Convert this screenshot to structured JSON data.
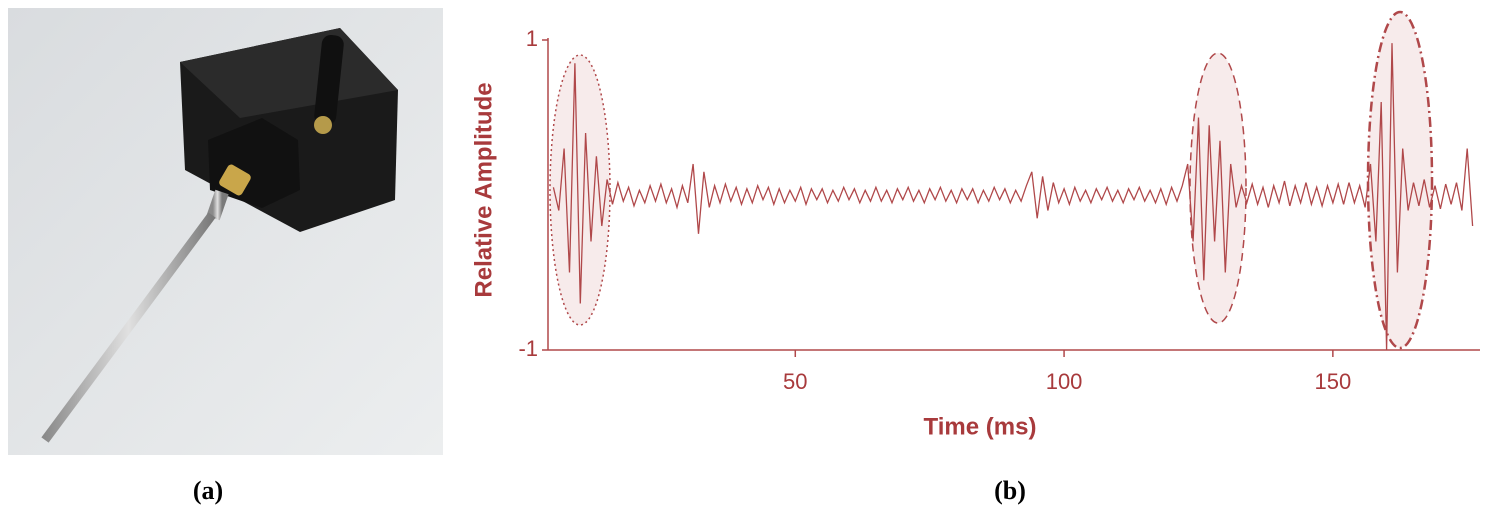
{
  "panels": {
    "a": "(a)",
    "b": "(b)"
  },
  "chart_data": {
    "type": "line",
    "ylabel": "Relative Amplitude",
    "xlabel": "Time (ms)",
    "xlim": [
      4,
      177
    ],
    "xticks": [
      50,
      100,
      150
    ],
    "ylim": [
      -1,
      1
    ],
    "yticks": [
      -1,
      1
    ],
    "color": "#b0484a",
    "x": [
      5,
      6,
      7,
      8,
      9,
      10,
      11,
      12,
      13,
      14,
      15,
      16,
      17,
      18,
      19,
      20,
      21,
      22,
      23,
      24,
      25,
      26,
      27,
      28,
      29,
      30,
      31,
      32,
      33,
      34,
      35,
      36,
      37,
      38,
      39,
      40,
      41,
      42,
      43,
      44,
      45,
      46,
      47,
      48,
      49,
      50,
      51,
      52,
      53,
      54,
      55,
      56,
      57,
      58,
      59,
      60,
      61,
      62,
      63,
      64,
      65,
      66,
      67,
      68,
      69,
      70,
      71,
      72,
      73,
      74,
      75,
      76,
      77,
      78,
      79,
      80,
      81,
      82,
      83,
      84,
      85,
      86,
      87,
      88,
      89,
      90,
      91,
      92,
      93,
      94,
      95,
      96,
      97,
      98,
      99,
      100,
      101,
      102,
      103,
      104,
      105,
      106,
      107,
      108,
      109,
      110,
      111,
      112,
      113,
      114,
      115,
      116,
      117,
      118,
      119,
      120,
      121,
      122,
      123,
      124,
      125,
      126,
      127,
      128,
      129,
      130,
      131,
      132,
      133,
      134,
      135,
      136,
      137,
      138,
      139,
      140,
      141,
      142,
      143,
      144,
      145,
      146,
      147,
      148,
      149,
      150,
      151,
      152,
      153,
      154,
      155,
      156,
      157,
      158,
      159,
      160,
      161,
      162,
      163,
      164,
      165,
      166,
      167,
      168,
      169,
      170,
      171,
      172,
      173,
      174,
      175,
      176
    ],
    "values": [
      0.05,
      -0.1,
      0.3,
      -0.5,
      0.85,
      -0.7,
      0.4,
      -0.3,
      0.25,
      -0.2,
      0.1,
      -0.06,
      0.08,
      -0.04,
      0.05,
      -0.07,
      0.03,
      -0.05,
      0.06,
      -0.04,
      0.07,
      -0.05,
      0.04,
      -0.08,
      0.06,
      -0.05,
      0.2,
      -0.25,
      0.15,
      -0.08,
      0.06,
      -0.05,
      0.07,
      -0.04,
      0.05,
      -0.06,
      0.04,
      -0.05,
      0.06,
      -0.03,
      0.05,
      -0.06,
      0.04,
      -0.05,
      0.03,
      -0.04,
      0.05,
      -0.06,
      0.04,
      -0.03,
      0.04,
      -0.05,
      0.03,
      -0.04,
      0.05,
      -0.03,
      0.04,
      -0.05,
      0.03,
      -0.04,
      0.05,
      -0.04,
      0.03,
      -0.05,
      0.04,
      -0.03,
      0.05,
      -0.04,
      0.03,
      -0.05,
      0.04,
      -0.03,
      0.05,
      -0.04,
      0.03,
      -0.05,
      0.04,
      -0.03,
      0.04,
      -0.05,
      0.03,
      -0.04,
      0.05,
      -0.03,
      0.04,
      -0.05,
      0.03,
      -0.04,
      0.06,
      0.15,
      -0.15,
      0.12,
      -0.1,
      0.08,
      -0.05,
      0.04,
      -0.06,
      0.05,
      -0.04,
      0.03,
      -0.05,
      0.04,
      -0.03,
      0.05,
      -0.04,
      0.03,
      -0.05,
      0.04,
      -0.03,
      0.05,
      -0.04,
      0.03,
      -0.05,
      0.04,
      -0.06,
      0.05,
      -0.04,
      0.06,
      0.2,
      -0.3,
      0.5,
      -0.55,
      0.45,
      -0.3,
      0.35,
      -0.5,
      0.2,
      -0.08,
      0.06,
      -0.05,
      0.07,
      -0.06,
      0.05,
      -0.08,
      0.06,
      -0.05,
      0.09,
      -0.07,
      0.06,
      -0.05,
      0.08,
      -0.06,
      0.05,
      -0.07,
      0.06,
      -0.05,
      0.07,
      -0.06,
      0.08,
      -0.05,
      0.06,
      -0.08,
      0.2,
      -0.3,
      0.6,
      -1.0,
      0.98,
      -0.5,
      0.3,
      -0.1,
      0.08,
      -0.07,
      0.1,
      -0.08,
      0.06,
      -0.09,
      0.07,
      -0.06,
      0.08,
      -0.1,
      0.3,
      -0.2
    ]
  }
}
